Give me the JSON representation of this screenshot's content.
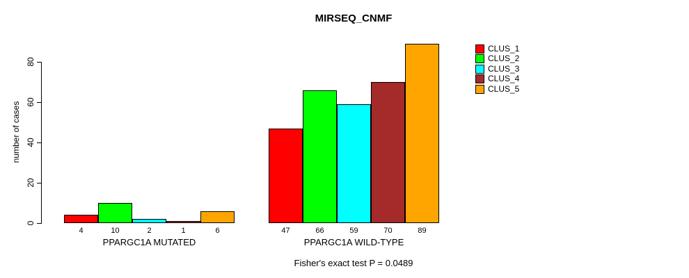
{
  "title": "MIRSEQ_CNMF",
  "y_axis": {
    "label": "number of cases"
  },
  "footer": "Fisher's exact test P = 0.0489",
  "chart_data": {
    "type": "bar",
    "title": "MIRSEQ_CNMF",
    "ylabel": "number of cases",
    "xlabel": "",
    "ylim": [
      0,
      89
    ],
    "yticks": [
      0,
      20,
      40,
      60,
      80
    ],
    "grid": false,
    "legend_position": "right-outside",
    "background": "#ffffff",
    "bar_border_color": "#000000",
    "series_names": [
      "CLUS_1",
      "CLUS_2",
      "CLUS_3",
      "CLUS_4",
      "CLUS_5"
    ],
    "series_colors": [
      "#ff0000",
      "#00ff00",
      "#00ffff",
      "#a52a2a",
      "#ffa500"
    ],
    "groups": [
      {
        "label": "PPARGC1A MUTATED",
        "values": [
          4,
          10,
          2,
          1,
          6
        ]
      },
      {
        "label": "PPARGC1A WILD-TYPE",
        "values": [
          47,
          66,
          59,
          70,
          89
        ]
      }
    ],
    "bar_value_labels": [
      [
        "4",
        "10",
        "2",
        "1",
        "6"
      ],
      [
        "47",
        "66",
        "59",
        "70",
        "89"
      ]
    ],
    "annotation": "Fisher's exact test P = 0.0489"
  }
}
